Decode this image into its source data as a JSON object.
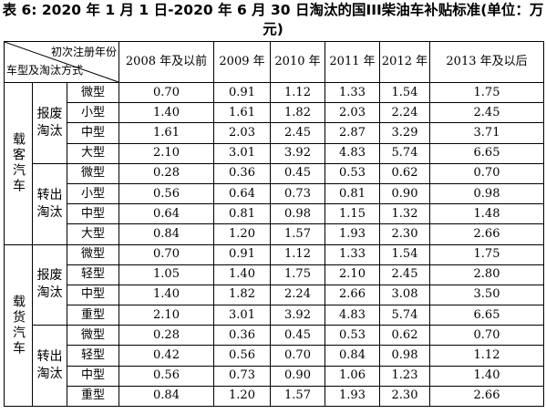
{
  "title": "表 6: 2020 年 1 月 1 日-2020 年 6 月 30 日淘汰的国III柴油车补贴标准(单位：万元)",
  "header": {
    "corner_top": "初次注册年份",
    "corner_bottom": "车型及淘汰方式",
    "years": [
      "2008 年及以前",
      "2009 年",
      "2010 年",
      "2011 年",
      "2012 年",
      "2013 年及以后"
    ]
  },
  "groups": [
    {
      "name": "载客汽车",
      "subgroups": [
        {
          "name": "报废淘汰",
          "rows": [
            {
              "type": "微型",
              "values": [
                "0.70",
                "0.91",
                "1.12",
                "1.33",
                "1.54",
                "1.75"
              ]
            },
            {
              "type": "小型",
              "values": [
                "1.40",
                "1.61",
                "1.82",
                "2.03",
                "2.24",
                "2.45"
              ]
            },
            {
              "type": "中型",
              "values": [
                "1.61",
                "2.03",
                "2.45",
                "2.87",
                "3.29",
                "3.71"
              ]
            },
            {
              "type": "大型",
              "values": [
                "2.10",
                "3.01",
                "3.92",
                "4.83",
                "5.74",
                "6.65"
              ]
            }
          ]
        },
        {
          "name": "转出淘汰",
          "rows": [
            {
              "type": "微型",
              "values": [
                "0.28",
                "0.36",
                "0.45",
                "0.53",
                "0.62",
                "0.70"
              ]
            },
            {
              "type": "小型",
              "values": [
                "0.56",
                "0.64",
                "0.73",
                "0.81",
                "0.90",
                "0.98"
              ]
            },
            {
              "type": "中型",
              "values": [
                "0.64",
                "0.81",
                "0.98",
                "1.15",
                "1.32",
                "1.48"
              ]
            },
            {
              "type": "大型",
              "values": [
                "0.84",
                "1.20",
                "1.57",
                "1.93",
                "2.30",
                "2.66"
              ]
            }
          ]
        }
      ]
    },
    {
      "name": "载货汽车",
      "subgroups": [
        {
          "name": "报废淘汰",
          "rows": [
            {
              "type": "微型",
              "values": [
                "0.70",
                "0.91",
                "1.12",
                "1.33",
                "1.54",
                "1.75"
              ]
            },
            {
              "type": "轻型",
              "values": [
                "1.05",
                "1.40",
                "1.75",
                "2.10",
                "2.45",
                "2.80"
              ]
            },
            {
              "type": "中型",
              "values": [
                "1.40",
                "1.82",
                "2.24",
                "2.66",
                "3.08",
                "3.50"
              ]
            },
            {
              "type": "重型",
              "values": [
                "2.10",
                "3.01",
                "3.92",
                "4.83",
                "5.74",
                "6.65"
              ]
            }
          ]
        },
        {
          "name": "转出淘汰",
          "rows": [
            {
              "type": "微型",
              "values": [
                "0.28",
                "0.36",
                "0.45",
                "0.53",
                "0.62",
                "0.70"
              ]
            },
            {
              "type": "轻型",
              "values": [
                "0.42",
                "0.56",
                "0.70",
                "0.84",
                "0.98",
                "1.12"
              ]
            },
            {
              "type": "中型",
              "values": [
                "0.56",
                "0.73",
                "0.90",
                "1.06",
                "1.23",
                "1.40"
              ]
            },
            {
              "type": "重型",
              "values": [
                "0.84",
                "1.20",
                "1.57",
                "1.93",
                "2.30",
                "2.66"
              ]
            }
          ]
        }
      ]
    }
  ]
}
